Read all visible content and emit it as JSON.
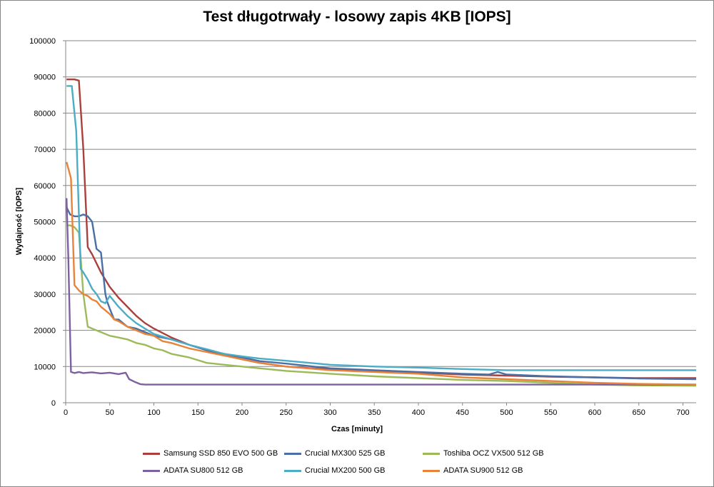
{
  "chart_data": {
    "type": "line",
    "title": "Test długotrwały - losowy zapis 4KB [IOPS]",
    "xlabel": "Czas [minuty]",
    "ylabel": "Wydajność [IOPS]",
    "xlim": [
      0,
      715
    ],
    "ylim": [
      0,
      100000
    ],
    "x_ticks": [
      "0",
      "50",
      "100",
      "150",
      "200",
      "250",
      "300",
      "350",
      "400",
      "450",
      "500",
      "550",
      "600",
      "650",
      "700"
    ],
    "y_ticks": [
      "0",
      "10000",
      "20000",
      "30000",
      "40000",
      "50000",
      "60000",
      "70000",
      "80000",
      "90000",
      "100000"
    ],
    "grid": "horizontal",
    "legend_position": "bottom",
    "series": [
      {
        "name": "Samsung SSD 850 EVO 500 GB",
        "color": "#A9403D",
        "x": [
          1,
          10,
          15,
          20,
          25,
          30,
          40,
          50,
          60,
          70,
          80,
          90,
          100,
          120,
          140,
          160,
          180,
          200,
          220,
          250,
          300,
          350,
          400,
          450,
          500,
          550,
          600,
          650,
          715
        ],
        "y": [
          89300,
          89300,
          89000,
          70000,
          43000,
          41000,
          36000,
          32000,
          29000,
          26500,
          24000,
          22000,
          20500,
          18000,
          16000,
          14500,
          13200,
          12000,
          11000,
          10000,
          9200,
          8700,
          8300,
          7800,
          7500,
          7200,
          7000,
          6800,
          6800
        ]
      },
      {
        "name": "Crucial MX300 525 GB",
        "color": "#4A6FA5",
        "x": [
          1,
          5,
          10,
          15,
          20,
          25,
          30,
          35,
          40,
          45,
          47,
          50,
          55,
          60,
          65,
          70,
          80,
          90,
          100,
          120,
          140,
          160,
          180,
          200,
          220,
          250,
          300,
          350,
          400,
          450,
          480,
          490,
          500,
          550,
          600,
          650,
          715
        ],
        "y": [
          54000,
          52000,
          51500,
          51500,
          52000,
          51500,
          50000,
          42500,
          41500,
          30000,
          28000,
          26000,
          23000,
          23000,
          22000,
          21000,
          20500,
          19500,
          18500,
          17500,
          16000,
          14500,
          13500,
          12500,
          11500,
          10800,
          9500,
          9000,
          8500,
          8000,
          7800,
          8500,
          7800,
          7300,
          7000,
          6700,
          6500
        ]
      },
      {
        "name": "Toshiba OCZ VX500 512 GB",
        "color": "#9BBB59",
        "x": [
          1,
          5,
          10,
          15,
          20,
          25,
          30,
          40,
          50,
          60,
          70,
          80,
          90,
          100,
          110,
          120,
          140,
          160,
          180,
          200,
          220,
          250,
          300,
          350,
          400,
          450,
          500,
          550,
          600,
          650,
          715
        ],
        "y": [
          49000,
          49000,
          48500,
          47000,
          30000,
          21000,
          20500,
          19500,
          18500,
          18000,
          17500,
          16500,
          16000,
          15000,
          14500,
          13500,
          12500,
          11000,
          10500,
          10000,
          9500,
          8800,
          8000,
          7300,
          6800,
          6300,
          6000,
          5500,
          5000,
          4800,
          4700
        ]
      },
      {
        "name": "ADATA SU800 512 GB",
        "color": "#7D60A0",
        "x": [
          1,
          3,
          6,
          10,
          15,
          20,
          30,
          40,
          50,
          60,
          68,
          72,
          78,
          85,
          90,
          120,
          150,
          200,
          300,
          400,
          450,
          500,
          600,
          715
        ],
        "y": [
          56500,
          40000,
          8500,
          8200,
          8500,
          8200,
          8400,
          8100,
          8300,
          7900,
          8300,
          6500,
          5800,
          5100,
          5000,
          5000,
          5000,
          5000,
          5000,
          5000,
          5000,
          5000,
          5000,
          5000
        ]
      },
      {
        "name": "Crucial MX200 500 GB",
        "color": "#4BACC6",
        "x": [
          1,
          7,
          12,
          15,
          17,
          20,
          25,
          30,
          35,
          40,
          45,
          50,
          55,
          60,
          70,
          80,
          90,
          100,
          120,
          140,
          160,
          180,
          200,
          220,
          250,
          300,
          350,
          400,
          450,
          500,
          550,
          600,
          650,
          715
        ],
        "y": [
          87500,
          87500,
          75000,
          52000,
          37000,
          36000,
          34000,
          31500,
          30000,
          28000,
          27500,
          29500,
          28000,
          26500,
          24000,
          22000,
          20500,
          19000,
          17500,
          16000,
          14800,
          13500,
          12800,
          12200,
          11600,
          10500,
          10000,
          9700,
          9300,
          9000,
          9000,
          9000,
          9000,
          9000
        ]
      },
      {
        "name": "ADATA SU900 512 GB",
        "color": "#E8833A",
        "x": [
          1,
          6,
          10,
          15,
          20,
          25,
          30,
          35,
          40,
          45,
          50,
          55,
          60,
          70,
          80,
          90,
          100,
          110,
          120,
          140,
          160,
          180,
          200,
          220,
          250,
          300,
          350,
          400,
          450,
          500,
          550,
          600,
          650,
          715
        ],
        "y": [
          66500,
          62000,
          32500,
          31000,
          30000,
          29500,
          28500,
          28000,
          26500,
          25500,
          24500,
          23000,
          22500,
          21000,
          20000,
          19000,
          18500,
          17000,
          16500,
          15000,
          14000,
          13000,
          12000,
          11000,
          10000,
          9000,
          8500,
          8000,
          7000,
          6500,
          6000,
          5500,
          5200,
          5000
        ]
      }
    ]
  }
}
